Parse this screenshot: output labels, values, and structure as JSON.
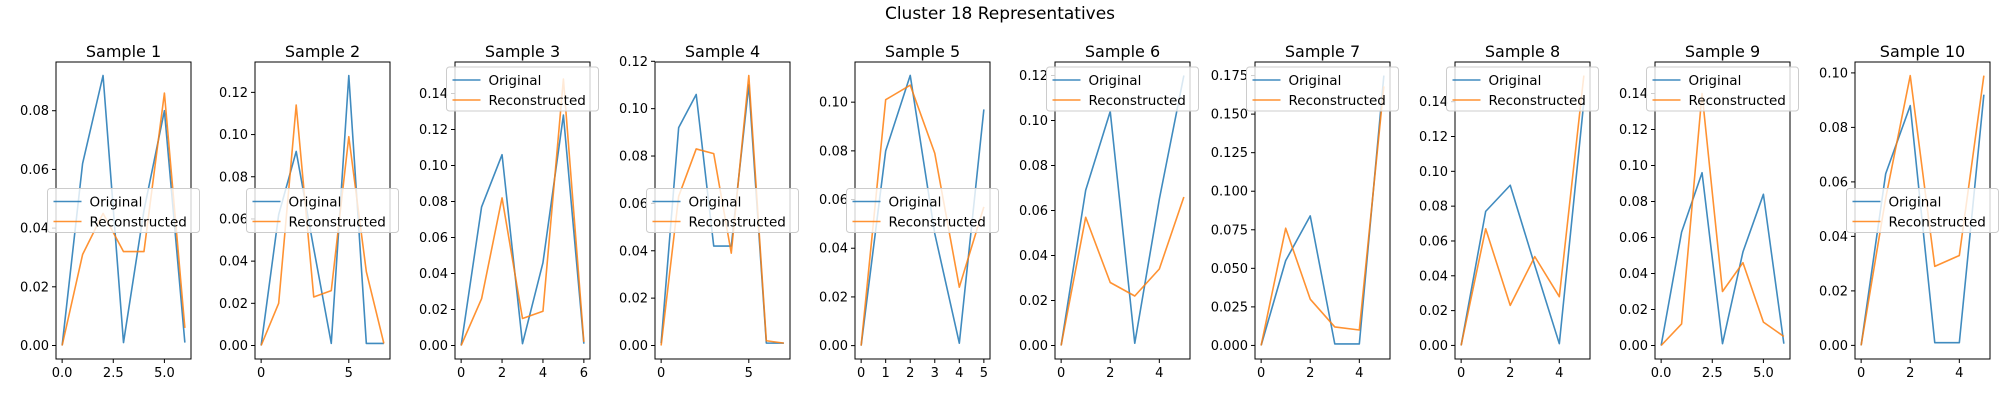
{
  "figure": {
    "title": "Cluster 18 Representatives",
    "colors": {
      "original": "#1f77b4",
      "reconstructed": "#ff7f0e"
    }
  },
  "chart_data": [
    {
      "type": "line",
      "title": "Sample 1",
      "xticks": [
        0.0,
        2.5,
        5.0
      ],
      "xtick_labels": [
        "0.0",
        "2.5",
        "5.0"
      ],
      "yticks": [
        0.0,
        0.02,
        0.04,
        0.06,
        0.08
      ],
      "ytick_labels": [
        "0.00",
        "0.02",
        "0.04",
        "0.06",
        "0.08"
      ],
      "xlim": [
        -0.3,
        6.3
      ],
      "ylim": [
        -0.0046,
        0.0966
      ],
      "legend": "center",
      "series": [
        {
          "name": "Original",
          "x": [
            0,
            1,
            2,
            3,
            4,
            5,
            6
          ],
          "values": [
            0.0,
            0.062,
            0.092,
            0.001,
            0.046,
            0.08,
            0.001
          ]
        },
        {
          "name": "Reconstructed",
          "x": [
            0,
            1,
            2,
            3,
            4,
            5,
            6
          ],
          "values": [
            0.0,
            0.031,
            0.045,
            0.032,
            0.032,
            0.086,
            0.006
          ]
        }
      ]
    },
    {
      "type": "line",
      "title": "Sample 2",
      "xticks": [
        0,
        5
      ],
      "xtick_labels": [
        "0",
        "5"
      ],
      "yticks": [
        0.0,
        0.02,
        0.04,
        0.06,
        0.08,
        0.1,
        0.12
      ],
      "ytick_labels": [
        "0.00",
        "0.02",
        "0.04",
        "0.06",
        "0.08",
        "0.10",
        "0.12"
      ],
      "xlim": [
        -0.35,
        7.35
      ],
      "ylim": [
        -0.0064,
        0.1344
      ],
      "legend": "center",
      "series": [
        {
          "name": "Original",
          "x": [
            0,
            1,
            2,
            3,
            4,
            5,
            6,
            7
          ],
          "values": [
            0.0,
            0.062,
            0.092,
            0.046,
            0.001,
            0.128,
            0.001,
            0.001
          ]
        },
        {
          "name": "Reconstructed",
          "x": [
            0,
            1,
            2,
            3,
            4,
            5,
            6,
            7
          ],
          "values": [
            0.0,
            0.02,
            0.114,
            0.023,
            0.026,
            0.099,
            0.035,
            0.001
          ]
        }
      ]
    },
    {
      "type": "line",
      "title": "Sample 3",
      "xticks": [
        0,
        2,
        4,
        6
      ],
      "xtick_labels": [
        "0",
        "2",
        "4",
        "6"
      ],
      "yticks": [
        0.0,
        0.02,
        0.04,
        0.06,
        0.08,
        0.1,
        0.12,
        0.14
      ],
      "ytick_labels": [
        "0.00",
        "0.02",
        "0.04",
        "0.06",
        "0.08",
        "0.10",
        "0.12",
        "0.14"
      ],
      "xlim": [
        -0.3,
        6.3
      ],
      "ylim": [
        -0.0075,
        0.1575
      ],
      "legend": "upper center",
      "series": [
        {
          "name": "Original",
          "x": [
            0,
            1,
            2,
            3,
            4,
            5,
            6
          ],
          "values": [
            0.0,
            0.077,
            0.106,
            0.001,
            0.046,
            0.128,
            0.001
          ]
        },
        {
          "name": "Reconstructed",
          "x": [
            0,
            1,
            2,
            3,
            4,
            5,
            6
          ],
          "values": [
            0.0,
            0.026,
            0.082,
            0.015,
            0.019,
            0.148,
            0.002
          ]
        }
      ]
    },
    {
      "type": "line",
      "title": "Sample 4",
      "xticks": [
        0,
        5
      ],
      "xtick_labels": [
        "0",
        "5"
      ],
      "yticks": [
        0.0,
        0.02,
        0.04,
        0.06,
        0.08,
        0.1,
        0.12
      ],
      "ytick_labels": [
        "0.00",
        "0.02",
        "0.04",
        "0.06",
        "0.08",
        "0.10",
        "0.12"
      ],
      "xlim": [
        -0.35,
        7.35
      ],
      "ylim": [
        -0.0057,
        0.1197
      ],
      "legend": "center",
      "series": [
        {
          "name": "Original",
          "x": [
            0,
            1,
            2,
            3,
            4,
            5,
            6,
            7
          ],
          "values": [
            0.001,
            0.092,
            0.106,
            0.042,
            0.042,
            0.11,
            0.001,
            0.001
          ]
        },
        {
          "name": "Reconstructed",
          "x": [
            0,
            1,
            2,
            3,
            4,
            5,
            6,
            7
          ],
          "values": [
            0.0,
            0.063,
            0.083,
            0.081,
            0.039,
            0.114,
            0.002,
            0.001
          ]
        }
      ]
    },
    {
      "type": "line",
      "title": "Sample 5",
      "xticks": [
        0,
        1,
        2,
        3,
        4,
        5
      ],
      "xtick_labels": [
        "0",
        "1",
        "2",
        "3",
        "4",
        "5"
      ],
      "yticks": [
        0.0,
        0.02,
        0.04,
        0.06,
        0.08,
        0.1
      ],
      "ytick_labels": [
        "0.00",
        "0.02",
        "0.04",
        "0.06",
        "0.08",
        "0.10"
      ],
      "xlim": [
        -0.25,
        5.25
      ],
      "ylim": [
        -0.0055,
        0.1165
      ],
      "legend": "center",
      "series": [
        {
          "name": "Original",
          "x": [
            0,
            1,
            2,
            3,
            4,
            5
          ],
          "values": [
            0.0,
            0.08,
            0.111,
            0.046,
            0.001,
            0.097
          ]
        },
        {
          "name": "Reconstructed",
          "x": [
            0,
            1,
            2,
            3,
            4,
            5
          ],
          "values": [
            0.0,
            0.101,
            0.107,
            0.079,
            0.024,
            0.057
          ]
        }
      ]
    },
    {
      "type": "line",
      "title": "Sample 6",
      "xticks": [
        0,
        2,
        4
      ],
      "xtick_labels": [
        "0",
        "2",
        "4"
      ],
      "yticks": [
        0.0,
        0.02,
        0.04,
        0.06,
        0.08,
        0.1,
        0.12
      ],
      "ytick_labels": [
        "0.00",
        "0.02",
        "0.04",
        "0.06",
        "0.08",
        "0.10",
        "0.12"
      ],
      "xlim": [
        -0.25,
        5.25
      ],
      "ylim": [
        -0.006,
        0.126
      ],
      "legend": "upper center",
      "series": [
        {
          "name": "Original",
          "x": [
            0,
            1,
            2,
            3,
            4,
            5
          ],
          "values": [
            0.0,
            0.069,
            0.104,
            0.001,
            0.065,
            0.12
          ]
        },
        {
          "name": "Reconstructed",
          "x": [
            0,
            1,
            2,
            3,
            4,
            5
          ],
          "values": [
            0.0,
            0.057,
            0.028,
            0.022,
            0.034,
            0.066
          ]
        }
      ]
    },
    {
      "type": "line",
      "title": "Sample 7",
      "xticks": [
        0,
        2,
        4
      ],
      "xtick_labels": [
        "0",
        "2",
        "4"
      ],
      "yticks": [
        0.0,
        0.025,
        0.05,
        0.075,
        0.1,
        0.125,
        0.15,
        0.175
      ],
      "ytick_labels": [
        "0.000",
        "0.025",
        "0.050",
        "0.075",
        "0.100",
        "0.125",
        "0.150",
        "0.175"
      ],
      "xlim": [
        -0.25,
        5.25
      ],
      "ylim": [
        -0.0088,
        0.1838
      ],
      "legend": "upper center",
      "series": [
        {
          "name": "Original",
          "x": [
            0,
            1,
            2,
            3,
            4,
            5
          ],
          "values": [
            0.0,
            0.055,
            0.084,
            0.001,
            0.001,
            0.175
          ]
        },
        {
          "name": "Reconstructed",
          "x": [
            0,
            1,
            2,
            3,
            4,
            5
          ],
          "values": [
            0.0,
            0.076,
            0.03,
            0.012,
            0.01,
            0.168
          ]
        }
      ]
    },
    {
      "type": "line",
      "title": "Sample 8",
      "xticks": [
        0,
        2,
        4
      ],
      "xtick_labels": [
        "0",
        "2",
        "4"
      ],
      "yticks": [
        0.0,
        0.02,
        0.04,
        0.06,
        0.08,
        0.1,
        0.12,
        0.14
      ],
      "ytick_labels": [
        "0.00",
        "0.02",
        "0.04",
        "0.06",
        "0.08",
        "0.10",
        "0.12",
        "0.14"
      ],
      "xlim": [
        -0.25,
        5.25
      ],
      "ylim": [
        -0.0078,
        0.1628
      ],
      "legend": "upper center",
      "series": [
        {
          "name": "Original",
          "x": [
            0,
            1,
            2,
            3,
            4,
            5
          ],
          "values": [
            0.0,
            0.077,
            0.092,
            0.046,
            0.001,
            0.14
          ]
        },
        {
          "name": "Reconstructed",
          "x": [
            0,
            1,
            2,
            3,
            4,
            5
          ],
          "values": [
            0.0,
            0.067,
            0.023,
            0.051,
            0.028,
            0.155
          ]
        }
      ]
    },
    {
      "type": "line",
      "title": "Sample 9",
      "xticks": [
        0.0,
        2.5,
        5.0
      ],
      "xtick_labels": [
        "0.0",
        "2.5",
        "5.0"
      ],
      "yticks": [
        0.0,
        0.02,
        0.04,
        0.06,
        0.08,
        0.1,
        0.12,
        0.14
      ],
      "ytick_labels": [
        "0.00",
        "0.02",
        "0.04",
        "0.06",
        "0.08",
        "0.10",
        "0.12",
        "0.14"
      ],
      "xlim": [
        -0.3,
        6.3
      ],
      "ylim": [
        -0.0075,
        0.1575
      ],
      "legend": "upper center",
      "series": [
        {
          "name": "Original",
          "x": [
            0,
            1,
            2,
            3,
            4,
            5,
            6
          ],
          "values": [
            0.0,
            0.063,
            0.096,
            0.001,
            0.052,
            0.084,
            0.001
          ]
        },
        {
          "name": "Reconstructed",
          "x": [
            0,
            1,
            2,
            3,
            4,
            5,
            6
          ],
          "values": [
            0.0,
            0.012,
            0.14,
            0.03,
            0.046,
            0.013,
            0.005
          ]
        }
      ]
    },
    {
      "type": "line",
      "title": "Sample 10",
      "xticks": [
        0,
        2,
        4
      ],
      "xtick_labels": [
        "0",
        "2",
        "4"
      ],
      "yticks": [
        0.0,
        0.02,
        0.04,
        0.06,
        0.08,
        0.1
      ],
      "ytick_labels": [
        "0.00",
        "0.02",
        "0.04",
        "0.06",
        "0.08",
        "0.10"
      ],
      "xlim": [
        -0.25,
        5.25
      ],
      "ylim": [
        -0.005,
        0.104
      ],
      "legend": "center",
      "series": [
        {
          "name": "Original",
          "x": [
            0,
            1,
            2,
            3,
            4,
            5
          ],
          "values": [
            0.0,
            0.063,
            0.088,
            0.001,
            0.001,
            0.092
          ]
        },
        {
          "name": "Reconstructed",
          "x": [
            0,
            1,
            2,
            3,
            4,
            5
          ],
          "values": [
            0.0,
            0.054,
            0.099,
            0.029,
            0.033,
            0.099
          ]
        }
      ]
    }
  ]
}
